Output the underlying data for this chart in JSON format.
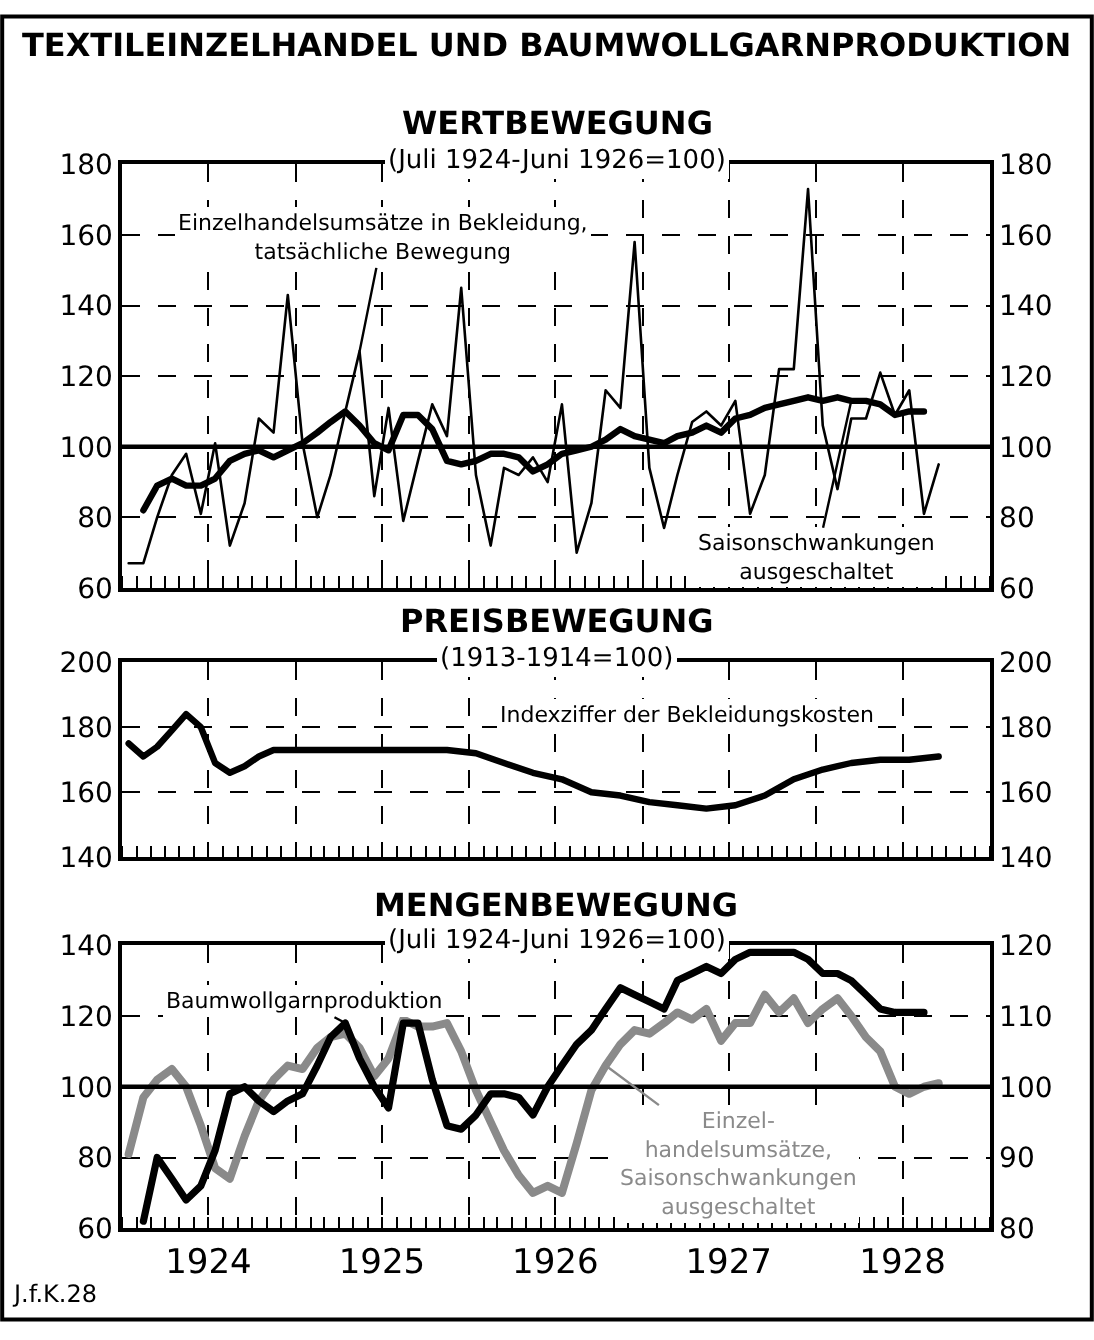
{
  "chart_data": [
    {
      "type": "line",
      "title": "WERTBEWEGUNG",
      "subtitle": "(Juli 1924-Juni 1926=100)",
      "annotations": [
        "TEXTILEINZELHANDEL UND BAUMWOLLGARNPRODUKTION"
      ],
      "x": [
        "1924-01-15",
        "1924-02-15",
        "1924-03-15",
        "1924-04-15",
        "1924-05-15",
        "1924-06-15",
        "1924-07-15",
        "1924-08-15",
        "1924-09-15",
        "1924-10-15",
        "1924-11-15",
        "1924-12-15",
        "1925-01-15",
        "1925-02-15",
        "1925-03-15",
        "1925-04-15",
        "1925-05-15",
        "1925-06-15",
        "1925-07-15",
        "1925-08-15",
        "1925-09-15",
        "1925-10-15",
        "1925-11-15",
        "1925-12-15",
        "1926-01-15",
        "1926-02-15",
        "1926-03-15",
        "1926-04-15",
        "1926-05-15",
        "1926-06-15",
        "1926-07-15",
        "1926-08-15",
        "1926-09-15",
        "1926-10-15",
        "1926-11-15",
        "1926-12-15",
        "1927-01-15",
        "1927-02-15",
        "1927-03-15",
        "1927-04-15",
        "1927-05-15",
        "1927-06-15",
        "1927-07-15",
        "1927-08-15",
        "1927-09-15",
        "1927-10-15",
        "1927-11-15",
        "1927-12-15",
        "1928-01-15",
        "1928-02-15",
        "1928-03-15",
        "1928-04-15",
        "1928-05-15",
        "1928-06-15",
        "1928-07-15",
        "1928-08-15",
        "1928-09-15"
      ],
      "xlim": [
        "1924-01-01",
        "1929-01-01"
      ],
      "xticks": [
        {
          "value": "1924-01-01",
          "label": null
        },
        {
          "value": "1924-07-01",
          "label": null
        },
        {
          "value": "1925-01-01",
          "label": null
        },
        {
          "value": "1925-07-01",
          "label": null
        },
        {
          "value": "1926-01-01",
          "label": null
        },
        {
          "value": "1926-07-01",
          "label": null
        },
        {
          "value": "1927-01-01",
          "label": null
        },
        {
          "value": "1927-07-01",
          "label": null
        },
        {
          "value": "1928-01-01",
          "label": null
        },
        {
          "value": "1928-07-01",
          "label": null
        },
        {
          "value": "1929-01-01",
          "label": null
        }
      ],
      "ylim": [
        60,
        180
      ],
      "yticks": [
        60,
        80,
        100,
        120,
        140,
        160,
        180
      ],
      "y2lim": [
        60,
        180
      ],
      "y2ticks": [
        60,
        80,
        100,
        120,
        140,
        160,
        180
      ],
      "tick_labels": "y",
      "grid": true,
      "ref_lines": [
        {
          "axis": "y",
          "value": 100
        }
      ],
      "series": [
        {
          "name": "Einzelhandelsumsätze in Bekleidung,\ntatsächliche Bewegung",
          "color": "#000000",
          "values": [
            67,
            67,
            80,
            92,
            98,
            81,
            101,
            72,
            84,
            108,
            104,
            143,
            101,
            80,
            92,
            110,
            127,
            86,
            111,
            79,
            96,
            112,
            103,
            145,
            92,
            72,
            94,
            92,
            97,
            90,
            112,
            70,
            84,
            116,
            111,
            158,
            94,
            77,
            92,
            107,
            110,
            106,
            113,
            81,
            92,
            122,
            122,
            173,
            106,
            88,
            108,
            108,
            121,
            109,
            116,
            81,
            95
          ]
        },
        {
          "name": "Saisonschwankungen\nausgeschaltet",
          "color": "#000000",
          "values": [
            null,
            82,
            89,
            91,
            89,
            89,
            91,
            96,
            98,
            99,
            97,
            99,
            101,
            104,
            107,
            110,
            106,
            101,
            99,
            109,
            109,
            105,
            96,
            95,
            96,
            98,
            98,
            97,
            93,
            95,
            98,
            99,
            100,
            102,
            105,
            103,
            102,
            101,
            103,
            104,
            106,
            104,
            108,
            109,
            111,
            112,
            113,
            114,
            113,
            114,
            113,
            113,
            112,
            109,
            110,
            110,
            null
          ]
        }
      ]
    },
    {
      "type": "line",
      "title": "PREISBEWEGUNG",
      "subtitle": "(1913-1914=100)",
      "xlim": [
        "1924-01-01",
        "1929-01-01"
      ],
      "xticks": [
        {
          "value": "1924-01-01",
          "label": null
        },
        {
          "value": "1924-07-01",
          "label": null
        },
        {
          "value": "1925-01-01",
          "label": null
        },
        {
          "value": "1925-07-01",
          "label": null
        },
        {
          "value": "1926-01-01",
          "label": null
        },
        {
          "value": "1926-07-01",
          "label": null
        },
        {
          "value": "1927-01-01",
          "label": null
        },
        {
          "value": "1927-07-01",
          "label": null
        },
        {
          "value": "1928-01-01",
          "label": null
        },
        {
          "value": "1928-07-01",
          "label": null
        },
        {
          "value": "1929-01-01",
          "label": null
        }
      ],
      "ylim": [
        140,
        200
      ],
      "yticks": [
        140,
        160,
        180,
        200
      ],
      "y2lim": [
        140,
        200
      ],
      "y2ticks": [
        140,
        160,
        180,
        200
      ],
      "tick_labels": "y",
      "grid": true,
      "series": [
        {
          "name": "Indexziffer der Bekleidungskosten",
          "color": "#000000",
          "x": [
            "1924-01-15",
            "1924-02-15",
            "1924-03-15",
            "1924-04-15",
            "1924-05-15",
            "1924-06-15",
            "1924-07-15",
            "1924-08-15",
            "1924-09-15",
            "1924-10-15",
            "1924-11-15",
            "1925-05-15",
            "1925-11-15",
            "1926-01-15",
            "1926-03-15",
            "1926-05-15",
            "1926-07-15",
            "1926-09-15",
            "1926-11-15",
            "1927-01-15",
            "1927-03-15",
            "1927-05-15",
            "1927-07-15",
            "1927-09-15",
            "1927-11-15",
            "1928-01-15",
            "1928-03-15",
            "1928-05-15",
            "1928-07-15",
            "1928-09-15"
          ],
          "values": [
            175,
            171,
            174,
            179,
            184,
            180,
            169,
            166,
            168,
            171,
            173,
            173,
            173,
            172,
            169,
            166,
            164,
            160,
            159,
            157,
            156,
            155,
            156,
            159,
            164,
            167,
            169,
            170,
            170,
            171
          ]
        }
      ]
    },
    {
      "type": "line",
      "title": "MENGENBEWEGUNG",
      "subtitle": "(Juli 1924-Juni 1926=100)",
      "annotations": [
        "J.f.K.28"
      ],
      "x": [
        "1924-01-15",
        "1924-02-15",
        "1924-03-15",
        "1924-04-15",
        "1924-05-15",
        "1924-06-15",
        "1924-07-15",
        "1924-08-15",
        "1924-09-15",
        "1924-10-15",
        "1924-11-15",
        "1924-12-15",
        "1925-01-15",
        "1925-02-15",
        "1925-03-15",
        "1925-04-15",
        "1925-05-15",
        "1925-06-15",
        "1925-07-15",
        "1925-08-15",
        "1925-09-15",
        "1925-10-15",
        "1925-11-15",
        "1925-12-15",
        "1926-01-15",
        "1926-02-15",
        "1926-03-15",
        "1926-04-15",
        "1926-05-15",
        "1926-06-15",
        "1926-07-15",
        "1926-08-15",
        "1926-09-15",
        "1926-10-15",
        "1926-11-15",
        "1926-12-15",
        "1927-01-15",
        "1927-02-15",
        "1927-03-15",
        "1927-04-15",
        "1927-05-15",
        "1927-06-15",
        "1927-07-15",
        "1927-08-15",
        "1927-09-15",
        "1927-10-15",
        "1927-11-15",
        "1927-12-15",
        "1928-01-15",
        "1928-02-15",
        "1928-03-15",
        "1928-04-15",
        "1928-05-15",
        "1928-06-15",
        "1928-07-15",
        "1928-08-15",
        "1928-09-15"
      ],
      "xlim": [
        "1924-01-01",
        "1929-01-01"
      ],
      "xticks": [
        {
          "value": "1924-01-01",
          "label": null
        },
        {
          "value": "1924-07-01",
          "label": "1924"
        },
        {
          "value": "1925-01-01",
          "label": null
        },
        {
          "value": "1925-07-01",
          "label": "1925"
        },
        {
          "value": "1926-01-01",
          "label": null
        },
        {
          "value": "1926-07-01",
          "label": "1926"
        },
        {
          "value": "1927-01-01",
          "label": null
        },
        {
          "value": "1927-07-01",
          "label": "1927"
        },
        {
          "value": "1928-01-01",
          "label": null
        },
        {
          "value": "1928-07-01",
          "label": "1928"
        },
        {
          "value": "1929-01-01",
          "label": null
        }
      ],
      "ylim": [
        60,
        140
      ],
      "yticks": [
        60,
        80,
        100,
        120,
        140
      ],
      "y2lim": [
        80,
        120
      ],
      "y2ticks": [
        80,
        90,
        100,
        110,
        120
      ],
      "grid": true,
      "ref_lines": [
        {
          "axis": "y",
          "value": 100
        }
      ],
      "series": [
        {
          "name": "Einzel-\nhandelsumsätze,\nSaisonschwankungen\nausgeschaltet",
          "color": "#8a8a8a",
          "values": [
            81,
            97,
            102,
            105,
            100,
            89,
            77,
            74,
            86,
            96,
            102,
            106,
            105,
            111,
            114,
            115,
            111,
            103,
            108,
            119,
            117,
            117,
            118,
            110,
            99,
            90,
            82,
            75,
            70,
            72,
            70,
            84,
            99,
            106,
            112,
            116,
            115,
            118,
            121,
            119,
            122,
            113,
            118,
            118,
            126,
            121,
            125,
            118,
            122,
            125,
            120,
            114,
            110,
            100,
            98,
            100,
            101
          ]
        },
        {
          "name": "Baumwollgarnproduktion",
          "color": "#000000",
          "axis": "y2",
          "values": [
            null,
            81,
            90,
            87,
            84,
            86,
            91,
            99,
            100,
            98,
            96.5,
            98,
            99,
            103,
            107,
            109,
            104,
            100,
            97,
            109,
            109,
            101,
            94.5,
            94,
            96,
            99,
            99,
            98.5,
            96,
            100,
            103,
            106,
            108,
            111,
            114,
            113,
            112,
            111,
            115,
            116,
            117,
            116,
            118,
            119,
            119,
            119,
            119,
            118,
            116,
            116,
            115,
            113,
            111,
            110.5,
            110.5,
            110.5,
            null
          ]
        }
      ]
    }
  ]
}
